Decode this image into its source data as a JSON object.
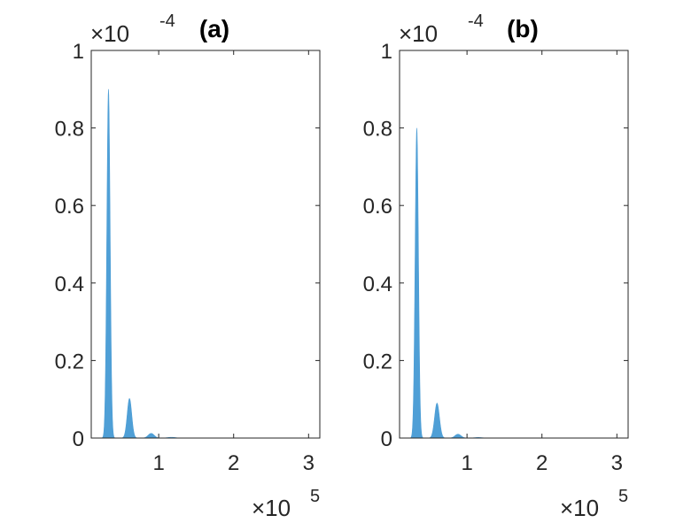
{
  "chart_data": [
    {
      "type": "area",
      "title": "(a)",
      "xlabel": "",
      "ylabel": "",
      "xlim": [
        0.1,
        3.15
      ],
      "ylim": [
        0,
        1
      ],
      "x_multiplier": {
        "base": "×10",
        "exponent": "5"
      },
      "y_multiplier": {
        "base": "×10",
        "exponent": "-4"
      },
      "xticks": [
        1,
        2,
        3
      ],
      "xtick_labels": [
        "1",
        "2",
        "3"
      ],
      "yticks": [
        0,
        0.2,
        0.4,
        0.6,
        0.8,
        1
      ],
      "ytick_labels": [
        "0",
        "0.2",
        "0.4",
        "0.6",
        "0.8",
        "1"
      ],
      "grid": false,
      "fill_color": "#4f9fd6",
      "peaks": [
        {
          "center": 0.33,
          "height": 0.9,
          "width": 0.022
        },
        {
          "center": 0.61,
          "height": 0.102,
          "width": 0.03
        },
        {
          "center": 0.9,
          "height": 0.012,
          "width": 0.04
        },
        {
          "center": 1.17,
          "height": 0.002,
          "width": 0.05
        }
      ]
    },
    {
      "type": "area",
      "title": "(b)",
      "xlabel": "",
      "ylabel": "",
      "xlim": [
        0.1,
        3.15
      ],
      "ylim": [
        0,
        1
      ],
      "x_multiplier": {
        "base": "×10",
        "exponent": "5"
      },
      "y_multiplier": {
        "base": "×10",
        "exponent": "-4"
      },
      "xticks": [
        1,
        2,
        3
      ],
      "xtick_labels": [
        "1",
        "2",
        "3"
      ],
      "yticks": [
        0,
        0.2,
        0.4,
        0.6,
        0.8,
        1
      ],
      "ytick_labels": [
        "0",
        "0.2",
        "0.4",
        "0.6",
        "0.8",
        "1"
      ],
      "grid": false,
      "fill_color": "#4f9fd6",
      "peaks": [
        {
          "center": 0.33,
          "height": 0.8,
          "width": 0.022
        },
        {
          "center": 0.6,
          "height": 0.09,
          "width": 0.032
        },
        {
          "center": 0.88,
          "height": 0.01,
          "width": 0.04
        },
        {
          "center": 1.15,
          "height": 0.0015,
          "width": 0.05
        }
      ]
    }
  ]
}
